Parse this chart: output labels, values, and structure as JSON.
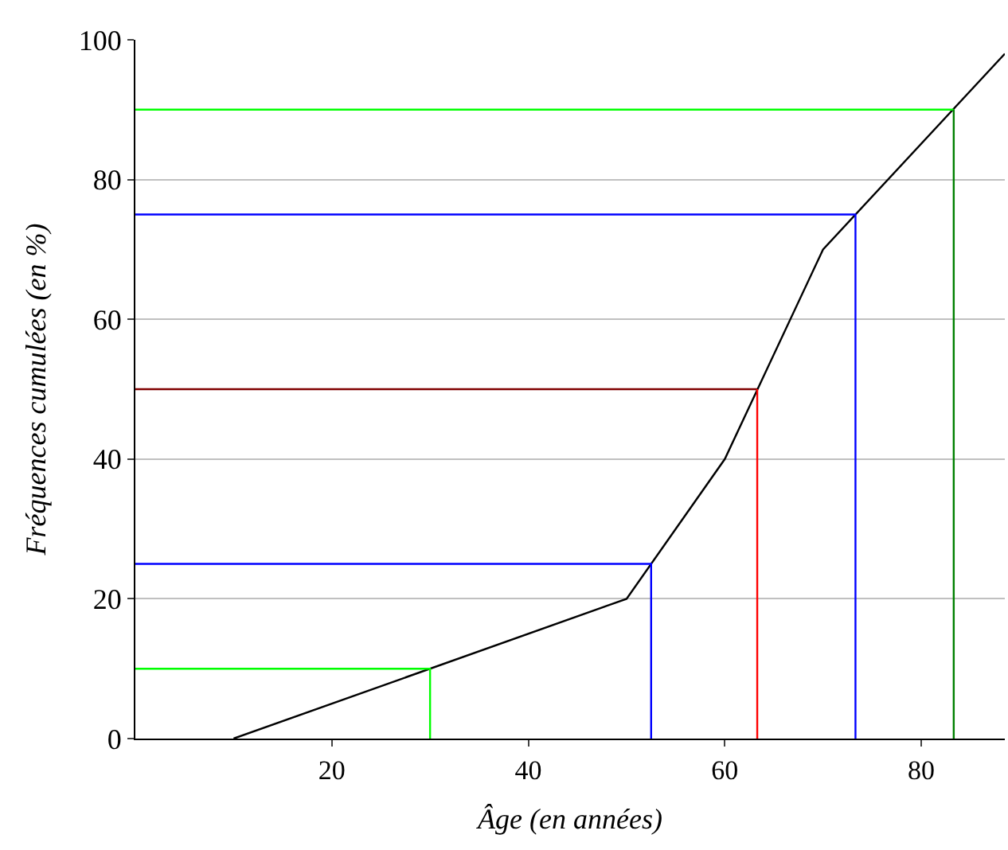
{
  "chart_data": {
    "type": "line",
    "xlabel": "Âge (en années)",
    "ylabel": "Fréquences cumulées (en %)",
    "xlim": [
      0,
      88.5
    ],
    "ylim": [
      0,
      100
    ],
    "xticks": [
      20,
      40,
      60,
      80
    ],
    "yticks": [
      0,
      20,
      40,
      60,
      80,
      100
    ],
    "grid": "y",
    "marker": "none",
    "line_style": "solid",
    "series": [
      {
        "color": "#000000",
        "x": [
          10,
          50,
          60,
          70,
          88.5
        ],
        "values": [
          0,
          20,
          40,
          70,
          98
        ]
      },
      {
        "color": "#00ff00",
        "x": [
          0,
          30,
          30
        ],
        "values": [
          10,
          10,
          0
        ]
      },
      {
        "color": "#0000ff",
        "x": [
          0,
          52.5,
          52.5
        ],
        "values": [
          25,
          25,
          0
        ]
      },
      {
        "color": "#800000",
        "x": [
          0,
          63.3
        ],
        "values": [
          50,
          50
        ]
      },
      {
        "color": "#ff0000",
        "x": [
          63.3,
          63.3
        ],
        "values": [
          50,
          0
        ]
      },
      {
        "color": "#0000ff",
        "x": [
          0,
          73.3,
          73.3
        ],
        "values": [
          75,
          75,
          0
        ]
      },
      {
        "color": "#00ff00",
        "x": [
          0,
          83.3
        ],
        "values": [
          90,
          90
        ]
      },
      {
        "color": "#008000",
        "x": [
          83.3,
          83.3
        ],
        "values": [
          90,
          0
        ]
      }
    ]
  }
}
